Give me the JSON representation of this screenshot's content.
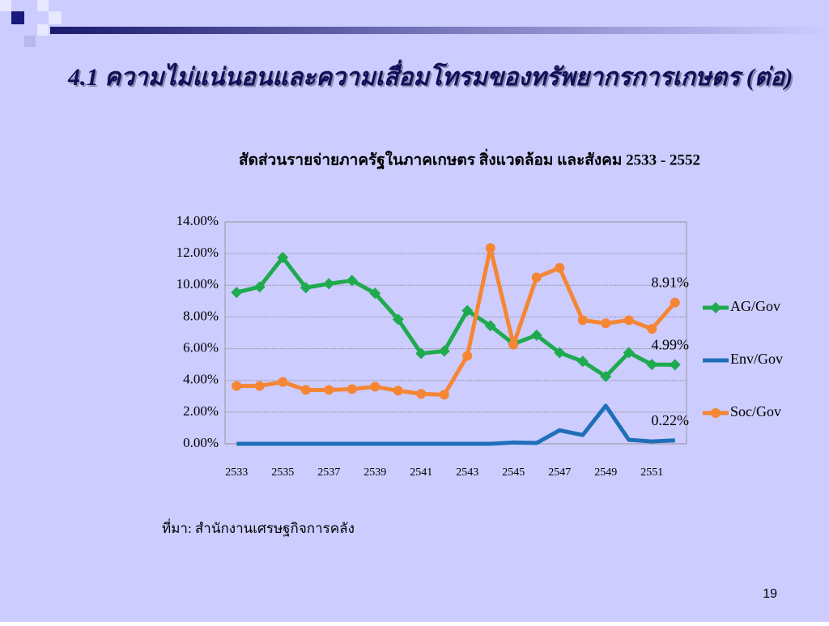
{
  "slide": {
    "title": "4.1  ความไม่แน่นอนและความเสื่อมโทรมของทรัพยากรการเกษตร (ต่อ)",
    "source": "ที่มา: สำนักงานเศรษฐกิจการคลัง",
    "page_number": "19"
  },
  "chart_data": {
    "type": "line",
    "title": "สัดส่วนรายจ่ายภาครัฐในภาคเกษตร สิ่งแวดล้อม และสังคม 2533 - 2552",
    "categories": [
      "2533",
      null,
      "2535",
      null,
      "2537",
      null,
      "2539",
      null,
      "2541",
      null,
      "2543",
      null,
      "2545",
      null,
      "2547",
      null,
      "2549",
      null,
      "2551",
      null
    ],
    "series": [
      {
        "name": "AG/Gov",
        "color": "#1faa4f",
        "marker": "diamond",
        "values": [
          9.55,
          9.9,
          11.75,
          9.85,
          10.1,
          10.3,
          9.5,
          7.85,
          5.7,
          5.85,
          8.4,
          7.45,
          6.3,
          6.85,
          5.75,
          5.2,
          4.25,
          5.75,
          5.0,
          4.99
        ],
        "value_labels": [
          null,
          null,
          null,
          null,
          null,
          null,
          null,
          null,
          null,
          null,
          null,
          null,
          null,
          null,
          null,
          null,
          null,
          null,
          null,
          "4.99%"
        ]
      },
      {
        "name": "Env/Gov",
        "color": "#1f6fb8",
        "marker": "none",
        "values": [
          0,
          0,
          0,
          0,
          0,
          0,
          0,
          0,
          0,
          0,
          0,
          0,
          0.08,
          0.05,
          0.85,
          0.55,
          2.4,
          0.25,
          0.15,
          0.22
        ],
        "value_labels": [
          null,
          null,
          null,
          null,
          null,
          null,
          null,
          null,
          null,
          null,
          null,
          null,
          null,
          null,
          null,
          null,
          null,
          null,
          null,
          "0.22%"
        ]
      },
      {
        "name": "Soc/Gov",
        "color": "#f58634",
        "marker": "circle",
        "values": [
          3.65,
          3.65,
          3.9,
          3.4,
          3.4,
          3.45,
          3.6,
          3.35,
          3.15,
          3.1,
          5.55,
          12.35,
          6.25,
          10.5,
          11.1,
          7.8,
          7.6,
          7.8,
          7.25,
          8.91
        ],
        "value_labels": [
          null,
          null,
          null,
          null,
          null,
          null,
          null,
          null,
          null,
          null,
          null,
          null,
          null,
          null,
          null,
          null,
          null,
          null,
          null,
          "8.91%"
        ]
      }
    ],
    "ylim": [
      0,
      14
    ],
    "yticks": [
      {
        "value": 0,
        "label": "0.00%"
      },
      {
        "value": 2,
        "label": "2.00%"
      },
      {
        "value": 4,
        "label": "4.00%"
      },
      {
        "value": 6,
        "label": "6.00%"
      },
      {
        "value": 8,
        "label": "8.00%"
      },
      {
        "value": 10,
        "label": "10.00%"
      },
      {
        "value": 12,
        "label": "12.00%"
      },
      {
        "value": 14,
        "label": "14.00%"
      }
    ],
    "grid": true,
    "legend": "right"
  }
}
